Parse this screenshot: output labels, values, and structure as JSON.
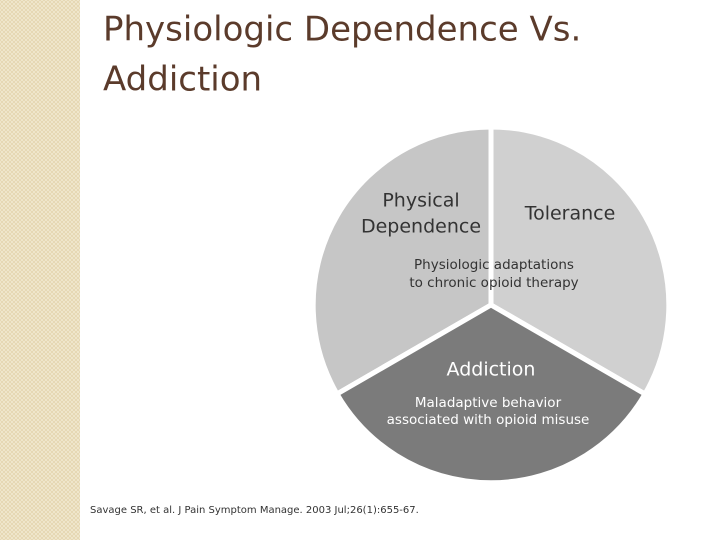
{
  "header": {
    "title": [
      "Physiologic Dependence Vs.",
      "Addiction"
    ]
  },
  "diagram": {
    "segments": [
      {
        "label": [
          "Physical",
          "Dependence"
        ]
      },
      {
        "label": [
          "Tolerance"
        ]
      },
      {
        "label": [
          "Addiction"
        ],
        "description": [
          "Maladaptive behavior",
          "associated with opioid misuse"
        ]
      }
    ],
    "shared_description": [
      "Physiologic adaptations",
      "to chronic opioid therapy"
    ]
  },
  "footer": {
    "citation": "Savage SR, et al. J Pain Symptom Manage. 2003 Jul;26(1):655-67."
  }
}
